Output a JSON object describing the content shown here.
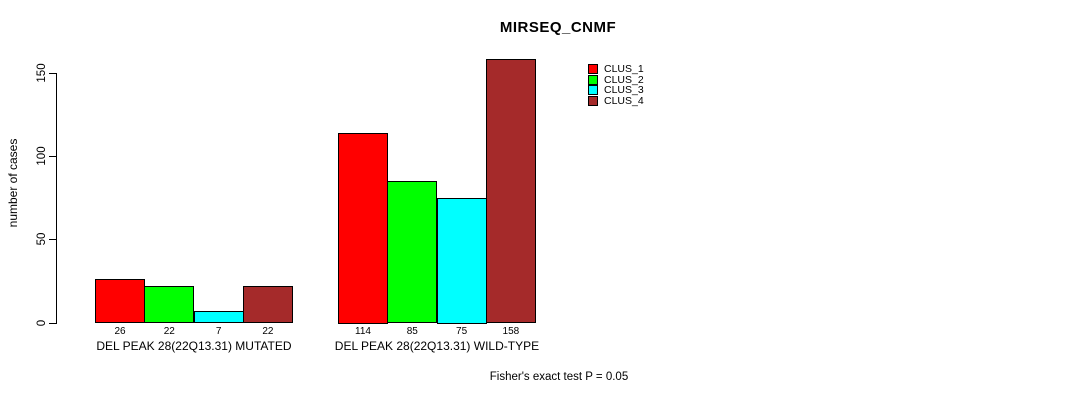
{
  "chart_data": {
    "type": "bar",
    "title": "MIRSEQ_CNMF",
    "ylabel": "number of cases",
    "xlabel": "",
    "annotation": "Fisher's exact test P = 0.05",
    "ylim": [
      0,
      150
    ],
    "yticks": [
      0,
      50,
      100,
      150
    ],
    "grid": false,
    "legend_position": "top-right",
    "bar_border_color": "#000000",
    "background_color": "#ffffff",
    "categories": [
      "DEL PEAK 28(22Q13.31) MUTATED",
      "DEL PEAK 28(22Q13.31) WILD-TYPE"
    ],
    "series": [
      {
        "name": "CLUS_1",
        "color": "#FF0000",
        "values": [
          26,
          114
        ]
      },
      {
        "name": "CLUS_2",
        "color": "#00FF00",
        "values": [
          22,
          85
        ]
      },
      {
        "name": "CLUS_3",
        "color": "#00FFFF",
        "values": [
          7,
          75
        ]
      },
      {
        "name": "CLUS_4",
        "color": "#A52A2A",
        "values": [
          22,
          158
        ]
      }
    ]
  }
}
